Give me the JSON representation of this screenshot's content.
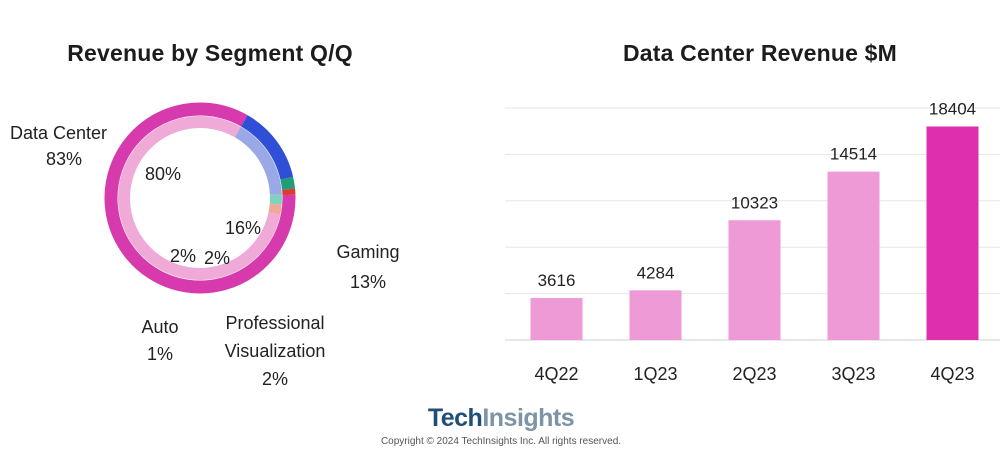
{
  "charts": {
    "donut": {
      "title": "Revenue by Segment Q/Q",
      "labels": [
        {
          "name": "Data Center",
          "value": "83%"
        },
        {
          "name": "Gaming",
          "value": "13%"
        },
        {
          "name": "Professional",
          "name2": "Visualization",
          "value": "2%"
        },
        {
          "name": "Auto",
          "value": "1%"
        }
      ],
      "inner_labels": [
        "80%",
        "16%",
        "2%",
        "2%"
      ]
    },
    "bar": {
      "title": "Data Center Revenue $M"
    }
  },
  "chart_data": [
    {
      "type": "pie",
      "title": "Revenue by Segment Q/Q",
      "style": "double-ring donut",
      "series": [
        {
          "ring": "outer",
          "categories": [
            "Data Center",
            "Gaming",
            "Professional Visualization",
            "Auto"
          ],
          "values": [
            83,
            13,
            2,
            1
          ],
          "colors": [
            "#d63aad",
            "#2f4fd6",
            "#1f9e78",
            "#e03b2f"
          ]
        },
        {
          "ring": "inner",
          "categories": [
            "Data Center",
            "Gaming",
            "Professional Visualization",
            "Auto"
          ],
          "values": [
            80,
            16,
            2,
            2
          ],
          "colors": [
            "#efaad8",
            "#9aa8e8",
            "#7fd3be",
            "#f0a898"
          ]
        }
      ]
    },
    {
      "type": "bar",
      "title": "Data Center Revenue $M",
      "categories": [
        "4Q22",
        "1Q23",
        "2Q23",
        "3Q23",
        "4Q23"
      ],
      "values": [
        3616,
        4284,
        10323,
        14514,
        18404
      ],
      "colors": [
        "#ee9ad6",
        "#ee9ad6",
        "#ee9ad6",
        "#ee9ad6",
        "#dd2fae"
      ],
      "xlabel": "",
      "ylabel": "",
      "ylim": [
        0,
        20000
      ],
      "grid": true
    }
  ],
  "footer": {
    "logo_part1": "Tech",
    "logo_part2": "Insights",
    "copyright": "Copyright © 2024 TechInsights Inc.  All rights reserved."
  }
}
